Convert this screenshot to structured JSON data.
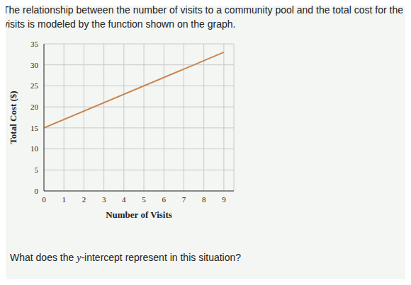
{
  "intro": "The relationship between the number of visits to a community pool and the total cost for the visits is modeled by the function shown on the graph.",
  "question": "What does the y-intercept represent in this situation?",
  "chart_data": {
    "type": "line",
    "x": [
      0,
      9
    ],
    "values": [
      15,
      33
    ],
    "color": "#c8864f",
    "xlabel": "Number of Visits",
    "ylabel": "Total Cost ($)",
    "xlim": [
      0,
      9.5
    ],
    "ylim": [
      0,
      35
    ],
    "xticks": [
      0,
      1,
      2,
      3,
      4,
      5,
      6,
      7,
      8,
      9
    ],
    "yticks": [
      0,
      5,
      10,
      15,
      20,
      25,
      30,
      35
    ],
    "grid": true
  }
}
